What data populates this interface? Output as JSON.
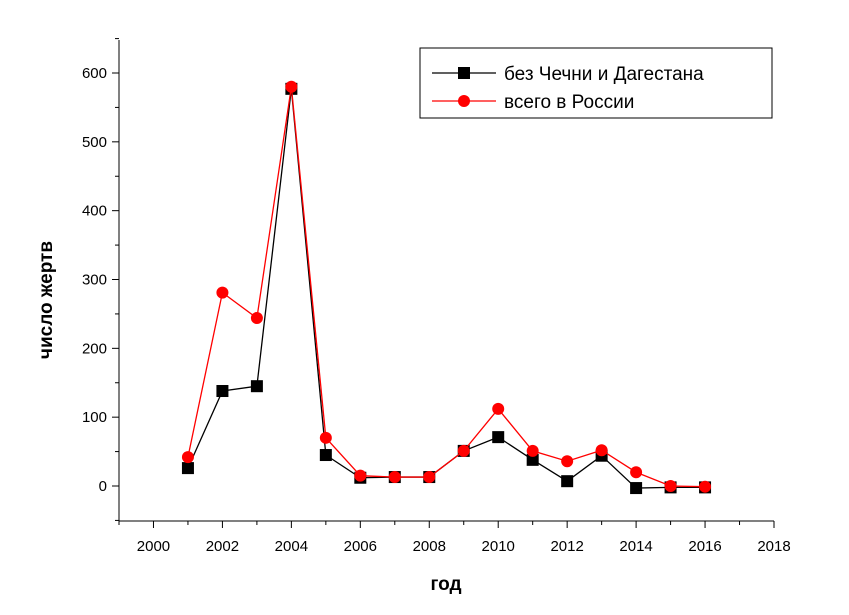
{
  "chart_data": {
    "type": "line",
    "title": "",
    "xlabel": "год",
    "ylabel": "число жертв",
    "xlim": [
      1999,
      2018
    ],
    "ylim": [
      -50,
      650
    ],
    "xticks": [
      2000,
      2002,
      2004,
      2006,
      2008,
      2010,
      2012,
      2014,
      2016,
      2018
    ],
    "yticks": [
      0,
      100,
      200,
      300,
      400,
      500,
      600
    ],
    "grid": false,
    "legend_position": "top-right",
    "x": [
      2001,
      2002,
      2003,
      2004,
      2005,
      2006,
      2007,
      2008,
      2009,
      2010,
      2011,
      2012,
      2013,
      2014,
      2015,
      2016
    ],
    "series": [
      {
        "name": "без Чечни и Дагестана",
        "color": "#000000",
        "marker": "square",
        "values": [
          26,
          138,
          145,
          577,
          45,
          12,
          13,
          13,
          51,
          71,
          38,
          7,
          44,
          -3,
          -2,
          -2
        ]
      },
      {
        "name": "всего в России",
        "color": "#ff0000",
        "marker": "circle",
        "values": [
          42,
          281,
          244,
          580,
          70,
          15,
          13,
          13,
          51,
          112,
          51,
          36,
          52,
          20,
          0,
          -1
        ]
      }
    ]
  }
}
